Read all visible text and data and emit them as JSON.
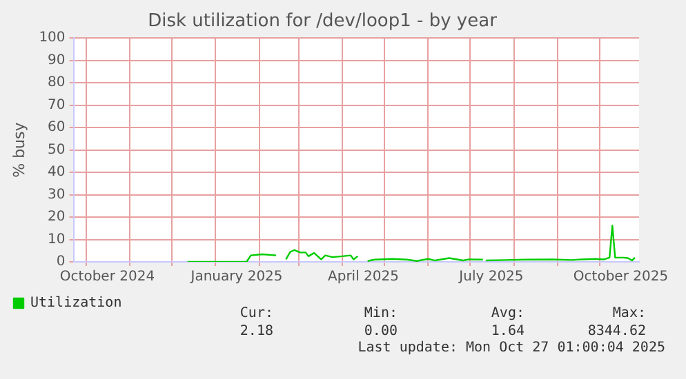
{
  "chart_data": {
    "type": "line",
    "title": "Disk utilization for /dev/loop1 - by year",
    "ylabel": "% busy",
    "x": [
      "2024-12-12",
      "2025-01-23",
      "2025-01-26",
      "2025-02-03",
      "2025-02-13",
      "2025-02-16",
      "2025-02-20",
      "2025-02-23",
      "2025-02-26",
      "2025-03-02",
      "2025-03-06",
      "2025-03-08",
      "2025-03-12",
      "2025-03-17",
      "2025-03-20",
      "2025-03-25",
      "2025-04-01",
      "2025-04-07",
      "2025-04-09",
      "2025-04-12",
      "2025-04-15",
      "2025-04-19",
      "2025-04-24",
      "2025-05-07",
      "2025-05-17",
      "2025-05-24",
      "2025-06-01",
      "2025-06-06",
      "2025-06-16",
      "2025-06-26",
      "2025-06-30",
      "2025-07-10",
      "2025-07-11",
      "2025-07-12",
      "2025-07-26",
      "2025-08-09",
      "2025-08-29",
      "2025-09-11",
      "2025-09-18",
      "2025-09-28",
      "2025-10-04",
      "2025-10-08",
      "2025-10-10",
      "2025-10-12",
      "2025-10-18",
      "2025-10-21",
      "2025-10-24",
      "2025-10-26"
    ],
    "series": [
      {
        "name": "Utilization",
        "color": "#00cc00",
        "values": [
          0,
          0,
          2.9,
          3.4,
          2.9,
          null,
          1.1,
          4.4,
          5.3,
          4.2,
          4.2,
          2.5,
          4.0,
          1.1,
          2.9,
          2.1,
          2.5,
          2.9,
          1.1,
          2.5,
          null,
          0.4,
          1.0,
          1.3,
          1.0,
          0.4,
          1.3,
          0.6,
          1.7,
          0.6,
          1.1,
          1.0,
          null,
          0.6,
          0.8,
          1.0,
          1.1,
          0.8,
          1.1,
          1.3,
          1.1,
          1.9,
          16.2,
          1.9,
          1.9,
          1.7,
          0.6,
          1.9
        ]
      }
    ],
    "xlim": [
      "2024-09-22",
      "2025-10-29"
    ],
    "xticks": [
      {
        "value": "2024-10-01",
        "label": null
      },
      {
        "value": "2024-10-16",
        "label": "October 2024"
      },
      {
        "value": "2024-11-01",
        "label": null
      },
      {
        "value": "2024-12-01",
        "label": null
      },
      {
        "value": "2025-01-01",
        "label": null
      },
      {
        "value": "2025-01-16",
        "label": "January 2025"
      },
      {
        "value": "2025-02-01",
        "label": null
      },
      {
        "value": "2025-03-01",
        "label": null
      },
      {
        "value": "2025-04-01",
        "label": null
      },
      {
        "value": "2025-04-16",
        "label": "April 2025"
      },
      {
        "value": "2025-05-01",
        "label": null
      },
      {
        "value": "2025-06-01",
        "label": null
      },
      {
        "value": "2025-07-01",
        "label": null
      },
      {
        "value": "2025-07-16",
        "label": "July 2025"
      },
      {
        "value": "2025-08-01",
        "label": null
      },
      {
        "value": "2025-09-01",
        "label": null
      },
      {
        "value": "2025-10-01",
        "label": null
      },
      {
        "value": "2025-10-16",
        "label": "October 2025"
      }
    ],
    "ylim": [
      0,
      100
    ],
    "yticks": [
      0,
      10,
      20,
      30,
      40,
      50,
      60,
      70,
      80,
      90,
      100
    ],
    "grid": true,
    "legend": "bottom",
    "marker": "none",
    "line_style": "solid",
    "annotations": [
      "Cur:",
      "2.18",
      "Min:",
      "0.00",
      "Avg:",
      "1.64",
      "Max:",
      "8344.62",
      "Last update: Mon Oct 27 01:00:04 2025"
    ]
  }
}
